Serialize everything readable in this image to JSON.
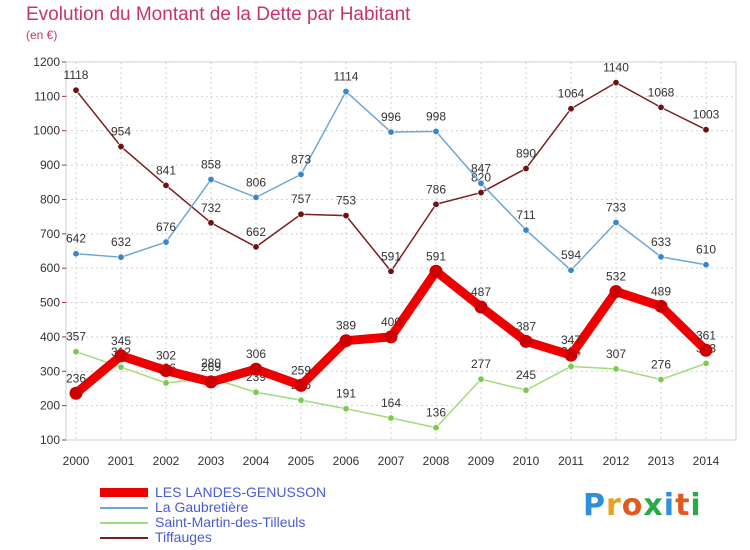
{
  "title": "Evolution du Montant de la Dette par Habitant",
  "subtitle": "(en €)",
  "logo": {
    "text": "Proxiti",
    "colors": [
      "#2f8fd8",
      "#e8a020",
      "#e05a20",
      "#2aa84a",
      "#2f8fd8",
      "#e05a20",
      "#2aa84a"
    ]
  },
  "chart_data": {
    "type": "line",
    "x": [
      "2000",
      "2001",
      "2002",
      "2003",
      "2004",
      "2005",
      "2006",
      "2007",
      "2008",
      "2009",
      "2010",
      "2011",
      "2012",
      "2013",
      "2014"
    ],
    "ylim": [
      100,
      1200
    ],
    "yticks": [
      100,
      200,
      300,
      400,
      500,
      600,
      700,
      800,
      900,
      1000,
      1100,
      1200
    ],
    "grid": true,
    "legend_position": "bottom-left",
    "series": [
      {
        "name": "Tiffauges",
        "color": "#7a1e1e",
        "dot": "#6b1212",
        "values": [
          1118,
          954,
          841,
          732,
          662,
          757,
          753,
          591,
          786,
          820,
          890,
          1064,
          1140,
          1068,
          1003
        ]
      },
      {
        "name": "La Gaubretière",
        "color": "#6fa6d6",
        "dot": "#3a86c8",
        "values": [
          642,
          632,
          676,
          858,
          806,
          873,
          1114,
          996,
          998,
          847,
          711,
          594,
          733,
          633,
          610
        ]
      },
      {
        "name": "Saint-Martin-des-Tilleuls",
        "color": "#9fdc7a",
        "dot": "#7cc94e",
        "values": [
          357,
          312,
          266,
          280,
          239,
          216,
          191,
          164,
          136,
          277,
          245,
          314,
          307,
          276,
          323
        ]
      },
      {
        "name": "LES LANDES-GENUSSON",
        "color": "#ee0000",
        "dot": "#cc0000",
        "values": [
          236,
          345,
          302,
          269,
          306,
          259,
          389,
          400,
          591,
          487,
          387,
          347,
          532,
          489,
          361
        ]
      }
    ],
    "legend_order": [
      "LES LANDES-GENUSSON",
      "La Gaubretière",
      "Saint-Martin-des-Tilleuls",
      "Tiffauges"
    ]
  }
}
